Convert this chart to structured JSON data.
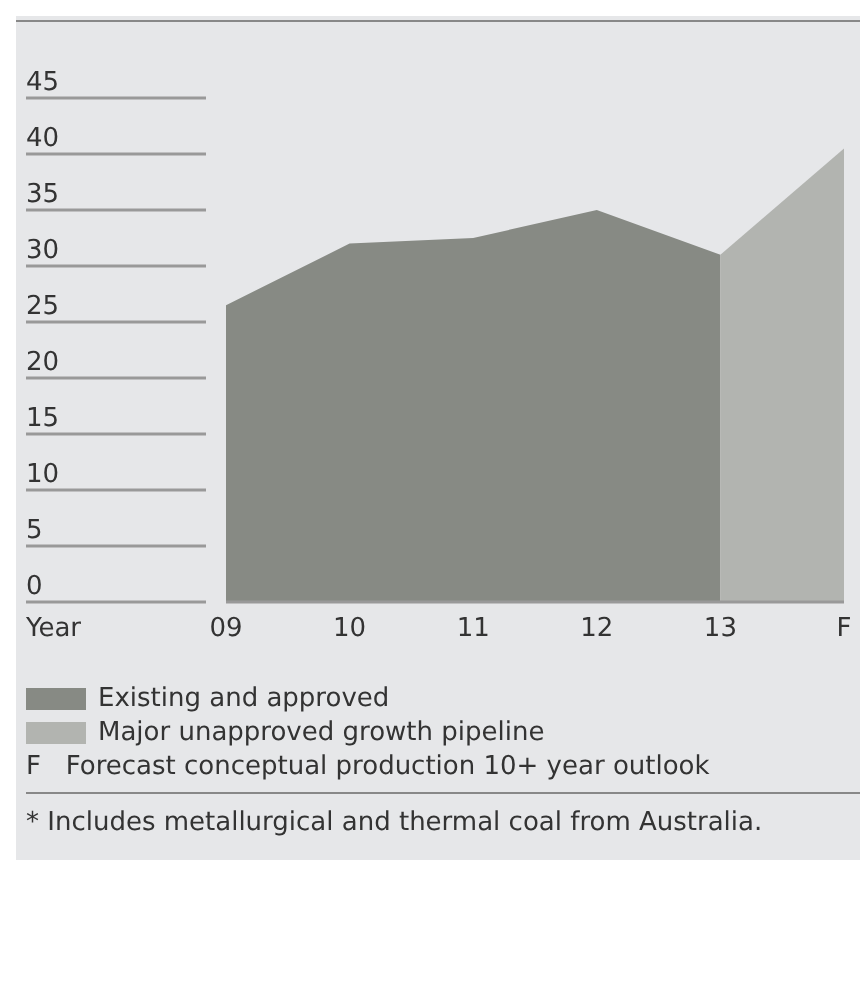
{
  "chart_data": {
    "type": "area",
    "xlabel": "Year",
    "categories": [
      "09",
      "10",
      "11",
      "12",
      "13",
      "F"
    ],
    "series": [
      {
        "name": "Existing and approved",
        "color": "#878a84",
        "values": [
          26.5,
          32,
          32.5,
          35,
          31,
          null
        ]
      },
      {
        "name": "Major unapproved growth pipeline",
        "color": "#b2b4b0",
        "values": [
          null,
          null,
          null,
          null,
          31,
          40.5
        ]
      }
    ],
    "ylim": [
      0,
      45
    ],
    "yticks": [
      0,
      5,
      10,
      15,
      20,
      25,
      30,
      35,
      40,
      45
    ],
    "legend": "bottom",
    "annotations": [
      "F   Forecast conceptual production 10+ year outlook",
      "* Includes metallurgical and thermal coal from Australia."
    ]
  }
}
